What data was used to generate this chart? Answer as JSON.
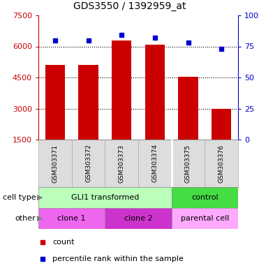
{
  "title": "GDS3550 / 1392959_at",
  "samples": [
    "GSM303371",
    "GSM303372",
    "GSM303373",
    "GSM303374",
    "GSM303375",
    "GSM303376"
  ],
  "counts": [
    5100,
    5100,
    6300,
    6100,
    4550,
    3000
  ],
  "percentile_ranks": [
    80,
    80,
    84,
    82,
    78,
    73
  ],
  "ylim_left": [
    1500,
    7500
  ],
  "ylim_right": [
    0,
    100
  ],
  "yticks_left": [
    1500,
    3000,
    4500,
    6000,
    7500
  ],
  "yticks_right": [
    0,
    25,
    50,
    75,
    100
  ],
  "bar_color": "#cc0000",
  "dot_color": "#0000cc",
  "bar_bottom": 1500,
  "grid_values": [
    3000,
    4500,
    6000
  ],
  "cell_type_groups": [
    {
      "label": "GLI1 transformed",
      "start": 0,
      "end": 4,
      "color": "#bbffbb"
    },
    {
      "label": "control",
      "start": 4,
      "end": 6,
      "color": "#44dd44"
    }
  ],
  "other_groups": [
    {
      "label": "clone 1",
      "start": 0,
      "end": 2,
      "color": "#ee66ee"
    },
    {
      "label": "clone 2",
      "start": 2,
      "end": 4,
      "color": "#cc33cc"
    },
    {
      "label": "parental cell",
      "start": 4,
      "end": 6,
      "color": "#ffaaff"
    }
  ],
  "left_label_color": "#cc0000",
  "right_label_color": "#0000cc",
  "legend_count_label": "count",
  "legend_percentile_label": "percentile rank within the sample",
  "row_label_cell_type": "cell type",
  "row_label_other": "other",
  "separator_col": 4,
  "sample_bg_color": "#dddddd",
  "sample_border_color": "#aaaaaa"
}
